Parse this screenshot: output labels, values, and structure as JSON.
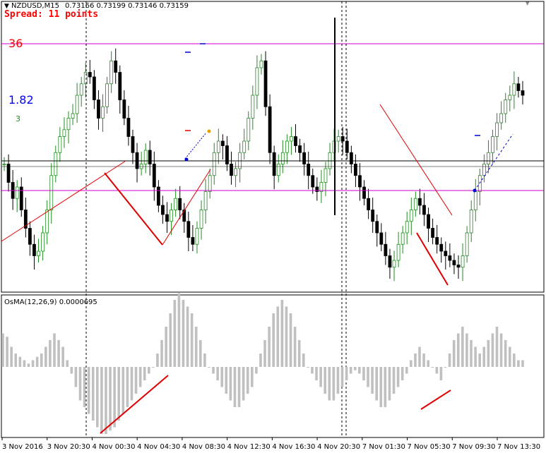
{
  "header": {
    "symbol_label": "NZDUSD,M15",
    "ohlc_label": "0.73166 0.73199 0.73146 0.73159",
    "spread_label": "Spread: 11 points"
  },
  "levels": {
    "red_label": "36",
    "blue_label": "1.82",
    "small_label": "3"
  },
  "indicator": {
    "label": "OsMA(12,26,9) 0.0000695"
  },
  "time_axis": {
    "labels": [
      "3 Nov 2016",
      "3 Nov 20:30",
      "4 Nov 00:30",
      "4 Nov 04:30",
      "4 Nov 08:30",
      "4 Nov 12:30",
      "4 Nov 16:30",
      "4 Nov 20:30",
      "7 Nov 01:30",
      "7 Nov 05:30",
      "7 Nov 09:30",
      "7 Nov 13:30"
    ]
  },
  "colors": {
    "bull": "#228b22",
    "bear": "#000000",
    "histogram": "#c0c0c0",
    "pattern_line": "#e00000",
    "magenta_level": "#cc00cc",
    "grid": "#000000"
  },
  "chart_data": {
    "type": "candlestick",
    "bars": 122,
    "price_path": [
      0.5,
      0.42,
      0.35,
      0.4,
      0.3,
      0.22,
      0.15,
      0.1,
      0.12,
      0.2,
      0.3,
      0.45,
      0.55,
      0.62,
      0.65,
      0.7,
      0.72,
      0.8,
      0.85,
      0.9,
      0.88,
      0.78,
      0.7,
      0.75,
      0.85,
      0.95,
      0.9,
      0.78,
      0.7,
      0.62,
      0.55,
      0.48,
      0.5,
      0.56,
      0.5,
      0.4,
      0.32,
      0.28,
      0.25,
      0.3,
      0.35,
      0.3,
      0.25,
      0.18,
      0.15,
      0.22,
      0.3,
      0.38,
      0.45,
      0.55,
      0.6,
      0.58,
      0.5,
      0.45,
      0.48,
      0.55,
      0.6,
      0.7,
      0.8,
      0.92,
      0.95,
      0.75,
      0.55,
      0.45,
      0.5,
      0.55,
      0.6,
      0.62,
      0.58,
      0.55,
      0.5,
      0.45,
      0.4,
      0.38,
      0.42,
      0.48,
      0.55,
      0.6,
      0.62,
      0.6,
      0.55,
      0.5,
      0.45,
      0.4,
      0.35,
      0.3,
      0.25,
      0.2,
      0.15,
      0.1,
      0.05,
      0.08,
      0.15,
      0.2,
      0.25,
      0.3,
      0.35,
      0.32,
      0.28,
      0.22,
      0.18,
      0.15,
      0.12,
      0.1,
      0.08,
      0.06,
      0.05,
      0.1,
      0.2,
      0.3,
      0.38,
      0.45,
      0.5,
      0.55,
      0.62,
      0.68,
      0.72,
      0.78,
      0.8,
      0.85,
      0.82,
      0.8
    ],
    "osma": [
      0.5,
      0.45,
      0.3,
      0.2,
      0.15,
      0.1,
      0.05,
      0.1,
      0.15,
      0.2,
      0.3,
      0.4,
      0.5,
      0.4,
      0.3,
      0.1,
      -0.1,
      -0.3,
      -0.5,
      -0.6,
      -0.7,
      -0.8,
      -0.9,
      -1.0,
      -1.0,
      -0.95,
      -0.9,
      -0.8,
      -0.7,
      -0.6,
      -0.5,
      -0.4,
      -0.3,
      -0.2,
      -0.1,
      0.0,
      0.2,
      0.4,
      0.6,
      0.8,
      1.0,
      1.1,
      1.0,
      0.9,
      0.8,
      0.6,
      0.4,
      0.2,
      0.0,
      -0.1,
      -0.2,
      -0.3,
      -0.4,
      -0.5,
      -0.6,
      -0.6,
      -0.5,
      -0.4,
      -0.3,
      -0.1,
      0.2,
      0.4,
      0.6,
      0.8,
      0.9,
      1.0,
      0.9,
      0.8,
      0.6,
      0.4,
      0.2,
      0.0,
      -0.1,
      -0.2,
      -0.3,
      -0.4,
      -0.5,
      -0.5,
      -0.4,
      -0.3,
      -0.2,
      -0.1,
      -0.05,
      -0.1,
      -0.2,
      -0.3,
      -0.4,
      -0.5,
      -0.6,
      -0.6,
      -0.5,
      -0.4,
      -0.3,
      -0.2,
      -0.1,
      0.1,
      0.2,
      0.3,
      0.2,
      0.1,
      0.0,
      -0.1,
      -0.2,
      0.0,
      0.2,
      0.4,
      0.5,
      0.6,
      0.5,
      0.4,
      0.3,
      0.2,
      0.3,
      0.4,
      0.5,
      0.6,
      0.5,
      0.4,
      0.3,
      0.2,
      0.1,
      0.1
    ]
  }
}
